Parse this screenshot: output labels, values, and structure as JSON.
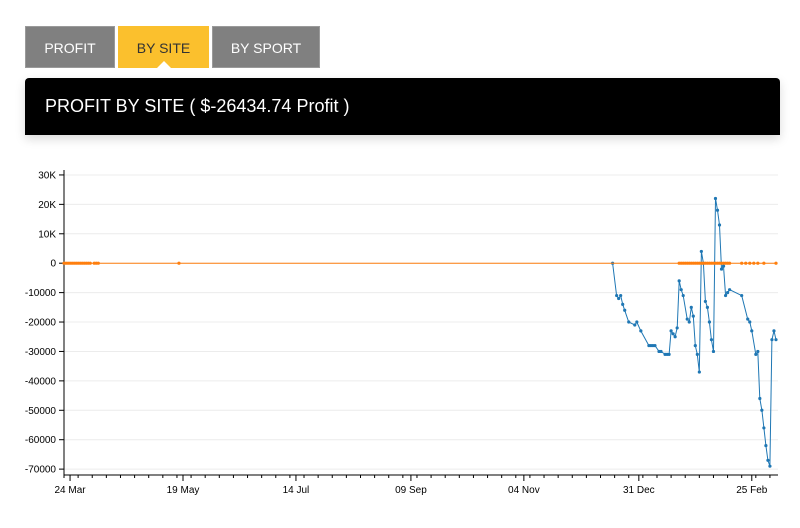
{
  "tabs": [
    {
      "label": "PROFIT",
      "active": false
    },
    {
      "label": "BY SITE",
      "active": true
    },
    {
      "label": "BY SPORT",
      "active": false
    }
  ],
  "header": {
    "title": "PROFIT BY SITE ( $-26434.74 Profit )"
  },
  "colors": {
    "active_tab": "#fbc02d",
    "tab": "#808080",
    "header_bg": "#000000",
    "series_blue": "#1f77b4",
    "series_orange": "#ff7f0e"
  },
  "chart_data": {
    "type": "line",
    "title": "",
    "xlabel": "",
    "ylabel": "",
    "x_type": "date",
    "xlim": [
      "2023-03-21",
      "2024-03-09"
    ],
    "ylim": [
      -72000,
      31000
    ],
    "grid": true,
    "y_ticks": [
      30000,
      20000,
      10000,
      0,
      -10000,
      -20000,
      -30000,
      -40000,
      -50000,
      -60000,
      -70000
    ],
    "y_tick_labels": [
      "30K",
      "20K",
      "10K",
      "0",
      "-10000",
      "-20000",
      "-30000",
      "-40000",
      "-50000",
      "-60000",
      "-70000"
    ],
    "x_ticks": [
      "2023-03-24",
      "2023-05-19",
      "2023-07-14",
      "2023-09-09",
      "2023-11-04",
      "2023-12-31",
      "2024-02-25"
    ],
    "x_tick_labels": [
      "24 Mar",
      "19 May",
      "14 Jul",
      "09 Sep",
      "04 Nov",
      "31 Dec",
      "25 Feb"
    ],
    "series": [
      {
        "color": "#1f77b4",
        "x": [
          "2023-12-18",
          "2023-12-20",
          "2023-12-21",
          "2023-12-22",
          "2023-12-23",
          "2023-12-24",
          "2023-12-26",
          "2023-12-29",
          "2023-12-30",
          "2024-01-01",
          "2024-01-05",
          "2024-01-06",
          "2024-01-07",
          "2024-01-08",
          "2024-01-10",
          "2024-01-11",
          "2024-01-13",
          "2024-01-14",
          "2024-01-15",
          "2024-01-16",
          "2024-01-17",
          "2024-01-18",
          "2024-01-19",
          "2024-01-20",
          "2024-01-21",
          "2024-01-22",
          "2024-01-24",
          "2024-01-25",
          "2024-01-26",
          "2024-01-27",
          "2024-01-28",
          "2024-01-29",
          "2024-01-30",
          "2024-01-31",
          "2024-02-01",
          "2024-02-02",
          "2024-02-03",
          "2024-02-04",
          "2024-02-05",
          "2024-02-06",
          "2024-02-07",
          "2024-02-08",
          "2024-02-09",
          "2024-02-10",
          "2024-02-11",
          "2024-02-12",
          "2024-02-13",
          "2024-02-14",
          "2024-02-20",
          "2024-02-23",
          "2024-02-24",
          "2024-02-25",
          "2024-02-27",
          "2024-02-28",
          "2024-02-29",
          "2024-03-01",
          "2024-03-02",
          "2024-03-03",
          "2024-03-04",
          "2024-03-05",
          "2024-03-06",
          "2024-03-07",
          "2024-03-08"
        ],
        "y": [
          0,
          -11000,
          -12000,
          -11000,
          -14000,
          -16000,
          -20000,
          -21000,
          -20000,
          -23000,
          -28000,
          -28000,
          -28000,
          -28000,
          -30000,
          -30000,
          -31000,
          -31000,
          -31000,
          -23000,
          -24000,
          -25000,
          -22000,
          -6000,
          -9000,
          -11000,
          -19000,
          -20000,
          -15000,
          -18000,
          -28000,
          -31000,
          -37000,
          4000,
          0,
          -13000,
          -15000,
          -20000,
          -26000,
          -30000,
          22000,
          18000,
          13000,
          -2000,
          -1000,
          -11000,
          -10000,
          -9000,
          -11000,
          -19000,
          -20000,
          -23000,
          -31000,
          -30000,
          -46000,
          -50000,
          -56000,
          -62000,
          -67000,
          -69000,
          -26000,
          -23000,
          -26000
        ]
      },
      {
        "color": "#ff7f0e",
        "x": [
          "2023-03-21",
          "2023-03-22",
          "2023-03-23",
          "2023-03-24",
          "2023-03-25",
          "2023-03-26",
          "2023-03-27",
          "2023-03-28",
          "2023-03-29",
          "2023-03-30",
          "2023-03-31",
          "2023-04-01",
          "2023-04-02",
          "2023-04-03",
          "2023-04-05",
          "2023-04-06",
          "2023-04-07",
          "2023-05-17",
          "2024-01-20",
          "2024-01-21",
          "2024-01-22",
          "2024-01-23",
          "2024-01-24",
          "2024-01-25",
          "2024-01-26",
          "2024-01-27",
          "2024-01-28",
          "2024-01-29",
          "2024-01-30",
          "2024-01-31",
          "2024-02-01",
          "2024-02-02",
          "2024-02-03",
          "2024-02-04",
          "2024-02-05",
          "2024-02-06",
          "2024-02-07",
          "2024-02-08",
          "2024-02-09",
          "2024-02-10",
          "2024-02-11",
          "2024-02-12",
          "2024-02-13",
          "2024-02-14",
          "2024-02-20",
          "2024-02-22",
          "2024-02-24",
          "2024-02-26",
          "2024-02-28",
          "2024-03-02",
          "2024-03-08"
        ],
        "y": [
          0,
          0,
          0,
          0,
          0,
          0,
          0,
          0,
          0,
          0,
          0,
          0,
          0,
          0,
          0,
          0,
          0,
          0,
          0,
          0,
          0,
          0,
          0,
          0,
          0,
          0,
          0,
          0,
          0,
          0,
          0,
          0,
          0,
          0,
          0,
          0,
          0,
          0,
          0,
          0,
          0,
          0,
          0,
          0,
          0,
          0,
          0,
          0,
          0,
          0,
          0
        ]
      }
    ]
  }
}
